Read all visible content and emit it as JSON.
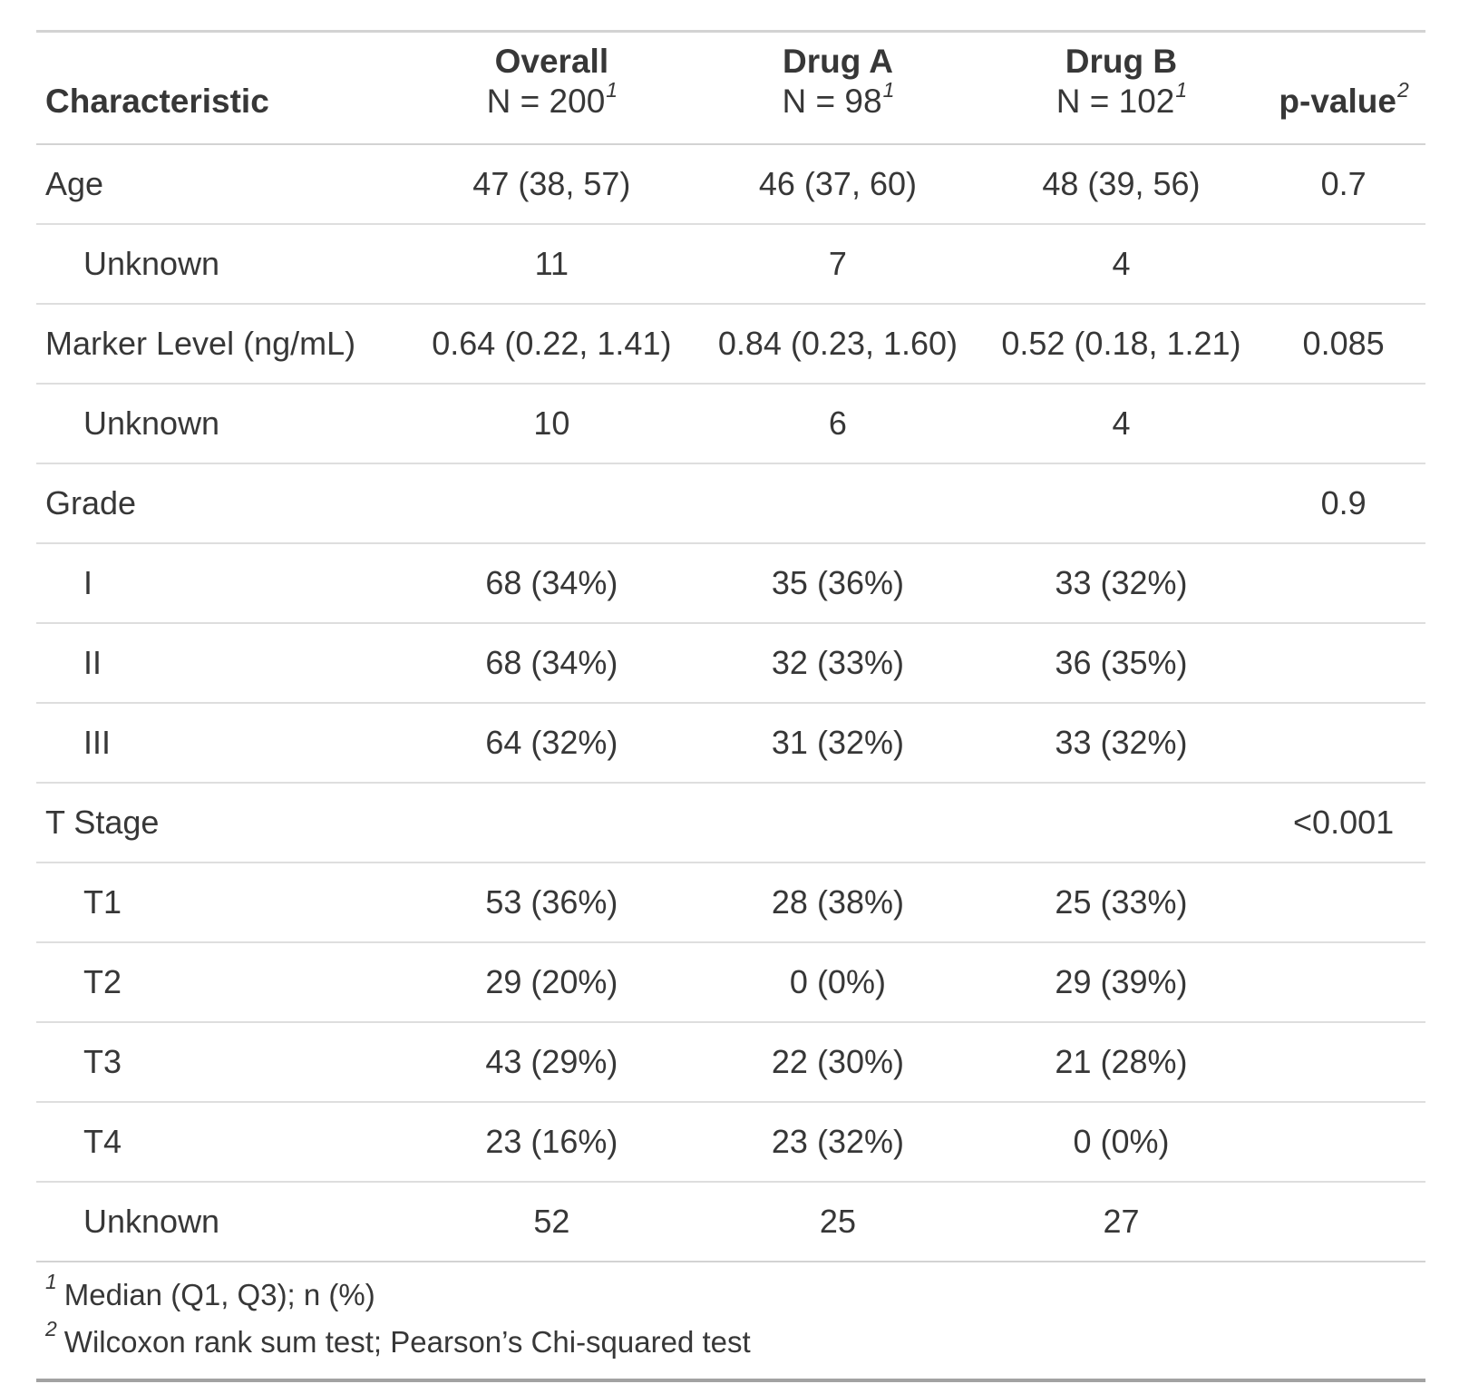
{
  "chart_data": {
    "type": "table",
    "title": "Summary statistics table by treatment group",
    "columns": [
      {
        "label": "Characteristic",
        "sublabel": "",
        "sup": ""
      },
      {
        "label": "Overall",
        "sublabel": "N = 200",
        "sup": "1"
      },
      {
        "label": "Drug A",
        "sublabel": "N = 98",
        "sup": "1"
      },
      {
        "label": "Drug B",
        "sublabel": "N = 102",
        "sup": "1"
      },
      {
        "label": "p-value",
        "sublabel": "",
        "sup": "2"
      }
    ],
    "rows": [
      {
        "label": "Age",
        "level": "top",
        "overall": "47 (38, 57)",
        "drug_a": "46 (37, 60)",
        "drug_b": "48 (39, 56)",
        "p_value": "0.7"
      },
      {
        "label": "Unknown",
        "level": "sub",
        "overall": "11",
        "drug_a": "7",
        "drug_b": "4",
        "p_value": ""
      },
      {
        "label": "Marker Level (ng/mL)",
        "level": "top",
        "overall": "0.64 (0.22, 1.41)",
        "drug_a": "0.84 (0.23, 1.60)",
        "drug_b": "0.52 (0.18, 1.21)",
        "p_value": "0.085"
      },
      {
        "label": "Unknown",
        "level": "sub",
        "overall": "10",
        "drug_a": "6",
        "drug_b": "4",
        "p_value": ""
      },
      {
        "label": "Grade",
        "level": "top",
        "overall": "",
        "drug_a": "",
        "drug_b": "",
        "p_value": "0.9"
      },
      {
        "label": "I",
        "level": "sub",
        "overall": "68 (34%)",
        "drug_a": "35 (36%)",
        "drug_b": "33 (32%)",
        "p_value": ""
      },
      {
        "label": "II",
        "level": "sub",
        "overall": "68 (34%)",
        "drug_a": "32 (33%)",
        "drug_b": "36 (35%)",
        "p_value": ""
      },
      {
        "label": "III",
        "level": "sub",
        "overall": "64 (32%)",
        "drug_a": "31 (32%)",
        "drug_b": "33 (32%)",
        "p_value": ""
      },
      {
        "label": "T Stage",
        "level": "top",
        "overall": "",
        "drug_a": "",
        "drug_b": "",
        "p_value": "<0.001"
      },
      {
        "label": "T1",
        "level": "sub",
        "overall": "53 (36%)",
        "drug_a": "28 (38%)",
        "drug_b": "25 (33%)",
        "p_value": ""
      },
      {
        "label": "T2",
        "level": "sub",
        "overall": "29 (20%)",
        "drug_a": "0 (0%)",
        "drug_b": "29 (39%)",
        "p_value": ""
      },
      {
        "label": "T3",
        "level": "sub",
        "overall": "43 (29%)",
        "drug_a": "22 (30%)",
        "drug_b": "21 (28%)",
        "p_value": ""
      },
      {
        "label": "T4",
        "level": "sub",
        "overall": "23 (16%)",
        "drug_a": "23 (32%)",
        "drug_b": "0 (0%)",
        "p_value": ""
      },
      {
        "label": "Unknown",
        "level": "sub",
        "overall": "52",
        "drug_a": "25",
        "drug_b": "27",
        "p_value": ""
      }
    ],
    "footnotes": [
      {
        "marker": "1",
        "text": "Median (Q1, Q3); n (%)"
      },
      {
        "marker": "2",
        "text": "Wilcoxon rank sum test; Pearson’s Chi-squared test"
      }
    ],
    "layout_colors": {
      "text": "#373737",
      "border_light": "#D3D3D3",
      "border_dark": "#A2A2A2"
    }
  }
}
